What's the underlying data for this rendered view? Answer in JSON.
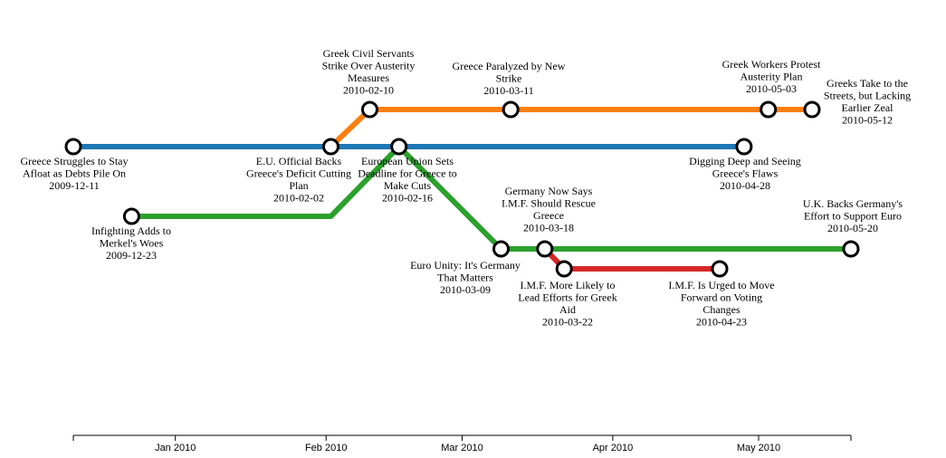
{
  "chart_data": {
    "type": "timeline",
    "x_axis": {
      "ticks": [
        "Jan 2010",
        "Feb 2010",
        "Mar 2010",
        "Apr 2010",
        "May 2010"
      ]
    },
    "route_colors": {
      "blue": "#1f77b4",
      "orange": "#ff7f0e",
      "green": "#2ca02c",
      "red": "#d62728"
    },
    "stations": [
      {
        "id": "s1",
        "title": "Greece Struggles to Stay Afloat as Debts Pile On",
        "lines": [
          "Greece Struggles to Stay",
          "Afloat as Debts Pile On"
        ],
        "date": "2009-12-11"
      },
      {
        "id": "s2",
        "title": "Infighting Adds to Merkel's Woes",
        "lines": [
          "Infighting Adds to",
          "Merkel's Woes"
        ],
        "date": "2009-12-23"
      },
      {
        "id": "s3",
        "title": "E.U. Official Backs Greece's Deficit Cutting Plan",
        "lines": [
          "E.U. Official Backs",
          "Greece's Deficit Cutting",
          "Plan"
        ],
        "date": "2010-02-02"
      },
      {
        "id": "s4",
        "title": "Greek Civil Servants Strike Over Austerity Measures",
        "lines": [
          "Greek Civil Servants",
          "Strike Over Austerity",
          "Measures"
        ],
        "date": "2010-02-10"
      },
      {
        "id": "s5",
        "title": "European Union Sets Deadline for Greece to Make Cuts",
        "lines": [
          "European Union Sets",
          "Deadline for Greece to",
          "Make Cuts"
        ],
        "date": "2010-02-16"
      },
      {
        "id": "s6",
        "title": "Euro Unity: It's Germany That Matters",
        "lines": [
          "Euro Unity: It's Germany",
          "That Matters"
        ],
        "date": "2010-03-09"
      },
      {
        "id": "s7",
        "title": "Greece Paralyzed by New Strike",
        "lines": [
          "Greece Paralyzed by New",
          "Strike"
        ],
        "date": "2010-03-11"
      },
      {
        "id": "s8",
        "title": "Germany Now Says I.M.F. Should Rescue Greece",
        "lines": [
          "Germany Now Says",
          "I.M.F. Should Rescue",
          "Greece"
        ],
        "date": "2010-03-18"
      },
      {
        "id": "s9",
        "title": "I.M.F. More Likely to Lead Efforts for Greek Aid",
        "lines": [
          "I.M.F. More Likely to",
          "Lead Efforts for Greek",
          "Aid"
        ],
        "date": "2010-03-22"
      },
      {
        "id": "s10",
        "title": "I.M.F. Is Urged to Move Forward on Voting Changes",
        "lines": [
          "I.M.F. Is Urged to Move",
          "Forward on Voting",
          "Changes"
        ],
        "date": "2010-04-23"
      },
      {
        "id": "s11",
        "title": "Digging Deep and Seeing Greece's Flaws",
        "lines": [
          "Digging Deep and Seeing",
          "Greece's Flaws"
        ],
        "date": "2010-04-28"
      },
      {
        "id": "s12",
        "title": "Greek Workers Protest Austerity Plan",
        "lines": [
          "Greek Workers Protest",
          "Austerity Plan"
        ],
        "date": "2010-05-03"
      },
      {
        "id": "s13",
        "title": "Greeks Take to the Streets, but Lacking Earlier Zeal",
        "lines": [
          "Greeks Take to the",
          "Streets, but Lacking",
          "Earlier Zeal"
        ],
        "date": "2010-05-12"
      },
      {
        "id": "s14",
        "title": "U.K. Backs Germany's Effort to Support Euro",
        "lines": [
          "U.K. Backs Germany's",
          "Effort to Support Euro"
        ],
        "date": "2010-05-20"
      }
    ]
  }
}
